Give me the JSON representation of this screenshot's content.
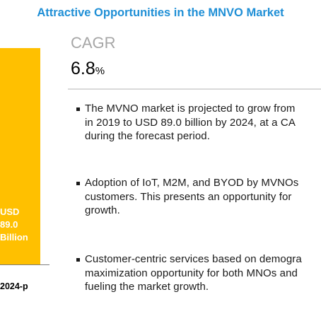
{
  "title": "Attractive Opportunities in the MNVO Market",
  "cagr": {
    "label": "CAGR",
    "value": "6.8",
    "unit": "%"
  },
  "chart_data": {
    "type": "bar",
    "categories": [
      "2024-p"
    ],
    "values": [
      89.0
    ],
    "bar_text": [
      "USD",
      "89.0",
      "Billion"
    ],
    "colors": {
      "bar": "#ffc000",
      "axis": "#7f7f7f",
      "title": "#1f8fd6"
    }
  },
  "bullets": [
    {
      "lines": [
        "The MVNO market is projected to grow from",
        "in 2019 to USD 89.0 billion by 2024, at a CA",
        "during the forecast period."
      ]
    },
    {
      "lines": [
        "Adoption of IoT, M2M, and BYOD by MVNOs",
        "customers. This presents an opportunity for",
        "growth."
      ]
    },
    {
      "lines": [
        "Customer-centric services based on demogra",
        "maximization opportunity for both MNOs and",
        "fueling the market growth."
      ]
    }
  ]
}
